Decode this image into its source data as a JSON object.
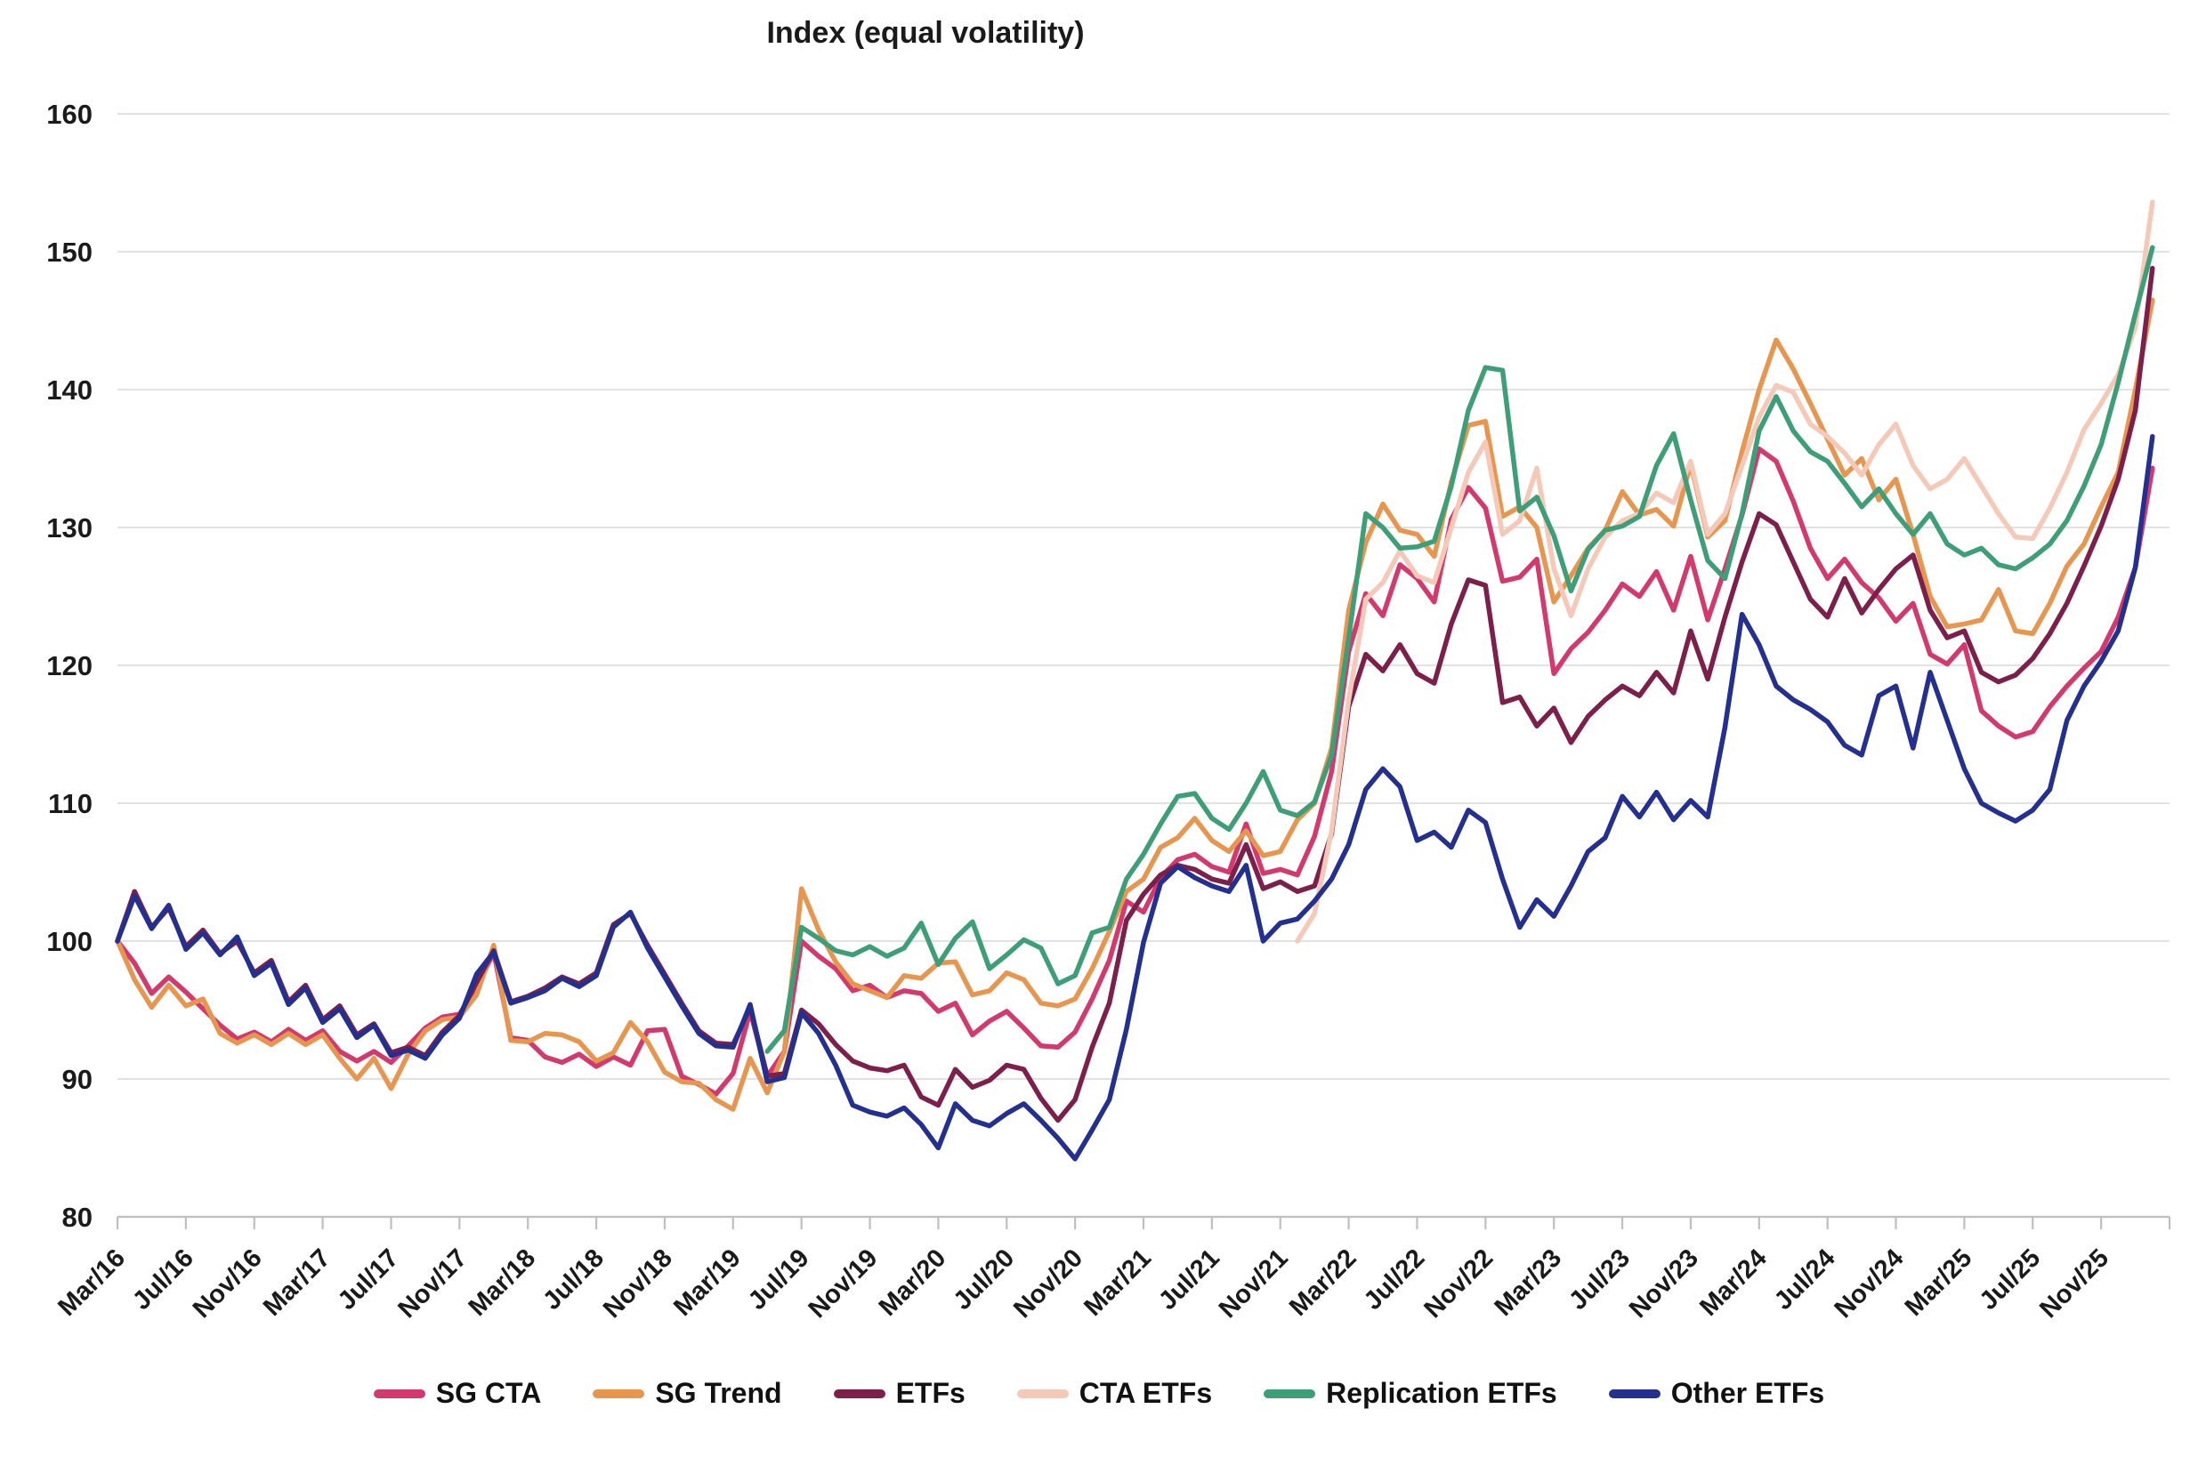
{
  "chart_data": {
    "type": "line",
    "title": "Index (equal volatility)",
    "xlabel": "",
    "ylabel": "",
    "ylim": [
      80,
      160
    ],
    "y_ticks": [
      80,
      90,
      100,
      110,
      120,
      130,
      140,
      150,
      160
    ],
    "grid": true,
    "legend_position": "bottom",
    "background_color": "#ffffff",
    "grid_color": "#d9d9d9",
    "axis_color": "#bfbfbf",
    "text_color": "#1a1a1a",
    "x_tick_every": 4,
    "x_tick_labels": [
      "Mar/16",
      "Jul/16",
      "Nov/16",
      "Mar/17",
      "Jul/17",
      "Nov/17",
      "Mar/18",
      "Jul/18",
      "Nov/18",
      "Mar/19",
      "Jul/19",
      "Nov/19",
      "Mar/20",
      "Jul/20",
      "Nov/20",
      "Mar/21",
      "Jul/21",
      "Nov/21",
      "Mar/22",
      "Jul/22",
      "Nov/22",
      "Mar/23",
      "Jul/23",
      "Nov/23",
      "Mar/24",
      "Jul/24",
      "Nov/24",
      "Mar/25",
      "Jul/25",
      "Nov/25"
    ],
    "x": [
      "Mar/16",
      "Apr/16",
      "May/16",
      "Jun/16",
      "Jul/16",
      "Aug/16",
      "Sep/16",
      "Oct/16",
      "Nov/16",
      "Dec/16",
      "Jan/17",
      "Feb/17",
      "Mar/17",
      "Apr/17",
      "May/17",
      "Jun/17",
      "Jul/17",
      "Aug/17",
      "Sep/17",
      "Oct/17",
      "Nov/17",
      "Dec/17",
      "Jan/18",
      "Feb/18",
      "Mar/18",
      "Apr/18",
      "May/18",
      "Jun/18",
      "Jul/18",
      "Aug/18",
      "Sep/18",
      "Oct/18",
      "Nov/18",
      "Dec/18",
      "Jan/19",
      "Feb/19",
      "Mar/19",
      "Apr/19",
      "May/19",
      "Jun/19",
      "Jul/19",
      "Aug/19",
      "Sep/19",
      "Oct/19",
      "Nov/19",
      "Dec/19",
      "Jan/20",
      "Feb/20",
      "Mar/20",
      "Apr/20",
      "May/20",
      "Jun/20",
      "Jul/20",
      "Aug/20",
      "Sep/20",
      "Oct/20",
      "Nov/20",
      "Dec/20",
      "Jan/21",
      "Feb/21",
      "Mar/21",
      "Apr/21",
      "May/21",
      "Jun/21",
      "Jul/21",
      "Aug/21",
      "Sep/21",
      "Oct/21",
      "Nov/21",
      "Dec/21",
      "Jan/22",
      "Feb/22",
      "Mar/22",
      "Apr/22",
      "May/22",
      "Jun/22",
      "Jul/22",
      "Aug/22",
      "Sep/22",
      "Oct/22",
      "Nov/22",
      "Dec/22",
      "Jan/23",
      "Feb/23",
      "Mar/23",
      "Apr/23",
      "May/23",
      "Jun/23",
      "Jul/23",
      "Aug/23",
      "Sep/23",
      "Oct/23",
      "Nov/23",
      "Dec/23",
      "Jan/24",
      "Feb/24",
      "Mar/24",
      "Apr/24",
      "May/24",
      "Jun/24",
      "Jul/24",
      "Aug/24",
      "Sep/24",
      "Oct/24",
      "Nov/24",
      "Dec/24",
      "Jan/25",
      "Feb/25",
      "Mar/25",
      "Apr/25",
      "May/25",
      "Jun/25",
      "Jul/25",
      "Aug/25",
      "Sep/25",
      "Oct/25",
      "Nov/25",
      "Dec/25",
      "Jan/26",
      "Feb/26"
    ],
    "series": [
      {
        "name": "SG CTA",
        "color": "#d23a6e",
        "values": [
          100,
          98.4,
          96.2,
          97.4,
          96.3,
          95.1,
          93.9,
          92.9,
          93.4,
          92.7,
          93.6,
          92.8,
          93.5,
          92.0,
          91.3,
          92.0,
          91.2,
          92.4,
          93.7,
          94.5,
          94.7,
          96.6,
          99.2,
          93.0,
          92.8,
          91.6,
          91.2,
          91.8,
          90.9,
          91.6,
          91.0,
          93.5,
          93.6,
          90.2,
          89.6,
          88.9,
          90.4,
          94.9,
          90.2,
          92.0,
          100.0,
          98.9,
          98.0,
          96.4,
          96.8,
          95.9,
          96.4,
          96.2,
          94.9,
          95.5,
          93.2,
          94.2,
          94.9,
          93.7,
          92.4,
          92.3,
          93.4,
          95.8,
          98.6,
          102.9,
          102.1,
          104.6,
          105.9,
          106.3,
          105.4,
          105.0,
          108.5,
          104.9,
          105.2,
          104.8,
          107.6,
          112.3,
          121.0,
          125.2,
          123.6,
          127.3,
          126.3,
          124.6,
          130.6,
          132.9,
          131.4,
          126.1,
          126.4,
          127.7,
          119.4,
          121.2,
          122.4,
          124.0,
          125.9,
          125.0,
          126.8,
          124.0,
          127.9,
          123.3,
          127.0,
          130.9,
          135.7,
          134.8,
          131.9,
          128.5,
          126.3,
          127.7,
          126.0,
          124.9,
          123.2,
          124.5,
          120.8,
          120.1,
          121.5,
          116.7,
          115.6,
          114.8,
          115.2,
          117.0,
          118.5,
          119.8,
          121.0,
          123.5,
          127.1,
          134.3
        ]
      },
      {
        "name": "SG Trend",
        "color": "#e6964f",
        "values": [
          100,
          97.2,
          95.2,
          96.8,
          95.3,
          95.8,
          93.3,
          92.6,
          93.2,
          92.5,
          93.3,
          92.5,
          93.2,
          91.5,
          90.0,
          91.5,
          89.3,
          91.8,
          93.5,
          94.3,
          94.5,
          96.1,
          99.7,
          92.8,
          92.7,
          93.3,
          93.2,
          92.7,
          91.3,
          91.9,
          94.1,
          92.7,
          90.5,
          89.8,
          89.7,
          88.5,
          87.8,
          91.5,
          89.0,
          92.0,
          103.8,
          100.8,
          98.5,
          96.9,
          96.4,
          95.9,
          97.5,
          97.3,
          98.4,
          98.5,
          96.1,
          96.4,
          97.7,
          97.2,
          95.5,
          95.3,
          95.8,
          98.0,
          100.7,
          103.6,
          104.5,
          106.8,
          107.5,
          108.9,
          107.3,
          106.5,
          108.0,
          106.2,
          106.5,
          108.8,
          110.0,
          114.0,
          124.0,
          128.9,
          131.7,
          129.8,
          129.5,
          127.9,
          133.3,
          137.4,
          137.7,
          130.8,
          131.5,
          130.0,
          124.6,
          126.5,
          128.5,
          129.8,
          132.6,
          130.9,
          131.3,
          130.1,
          134.6,
          129.3,
          130.5,
          135.5,
          140.0,
          143.6,
          141.5,
          139.0,
          136.4,
          133.8,
          135.0,
          132.0,
          133.5,
          129.5,
          125.0,
          122.8,
          123.0,
          123.3,
          125.5,
          122.5,
          122.3,
          124.5,
          127.2,
          128.8,
          131.5,
          134.0,
          140.0,
          146.5
        ]
      },
      {
        "name": "ETFs",
        "color": "#7c1f4a",
        "values": [
          100,
          103.6,
          101.0,
          102.4,
          99.6,
          100.8,
          99.1,
          100.0,
          97.7,
          98.6,
          95.6,
          96.8,
          94.3,
          95.3,
          93.2,
          94.0,
          91.9,
          92.3,
          91.7,
          93.4,
          94.6,
          97.0,
          99.3,
          95.6,
          96.0,
          96.6,
          97.4,
          96.9,
          97.7,
          101.2,
          102.0,
          99.7,
          97.6,
          95.5,
          93.5,
          92.6,
          92.5,
          95.2,
          90.2,
          90.4,
          95.0,
          94.0,
          92.5,
          91.3,
          90.8,
          90.6,
          91.0,
          88.7,
          88.1,
          90.7,
          89.4,
          89.9,
          91.0,
          90.7,
          88.6,
          87.0,
          88.5,
          92.3,
          95.5,
          101.5,
          103.4,
          104.8,
          105.5,
          105.2,
          104.5,
          104.2,
          107.0,
          103.8,
          104.3,
          103.6,
          104.0,
          107.8,
          117.0,
          120.8,
          119.6,
          121.5,
          119.4,
          118.7,
          123.0,
          126.2,
          125.8,
          117.3,
          117.7,
          115.6,
          116.9,
          114.4,
          116.3,
          117.5,
          118.5,
          117.8,
          119.5,
          118.0,
          122.5,
          119.0,
          123.5,
          127.5,
          131.0,
          130.2,
          127.5,
          124.8,
          123.5,
          126.3,
          123.8,
          125.5,
          127.0,
          128.0,
          124.0,
          122.0,
          122.5,
          119.5,
          118.8,
          119.3,
          120.5,
          122.3,
          124.5,
          127.2,
          130.1,
          133.5,
          138.5,
          148.8
        ]
      },
      {
        "name": "CTA ETFs",
        "color": "#f4c9b8",
        "values": [
          null,
          null,
          null,
          null,
          null,
          null,
          null,
          null,
          null,
          null,
          null,
          null,
          null,
          null,
          null,
          null,
          null,
          null,
          null,
          null,
          null,
          null,
          null,
          null,
          null,
          null,
          null,
          null,
          null,
          null,
          null,
          null,
          null,
          null,
          null,
          null,
          null,
          null,
          null,
          null,
          null,
          null,
          null,
          null,
          null,
          null,
          null,
          null,
          null,
          null,
          null,
          null,
          null,
          null,
          null,
          null,
          null,
          null,
          null,
          null,
          null,
          null,
          null,
          null,
          null,
          null,
          null,
          null,
          null,
          100.0,
          102.0,
          108.0,
          117.5,
          124.8,
          126.0,
          128.3,
          126.5,
          126.0,
          130.0,
          134.0,
          136.2,
          129.5,
          130.5,
          134.3,
          127.0,
          123.6,
          127.0,
          129.3,
          130.5,
          131.0,
          132.5,
          131.8,
          134.8,
          129.5,
          131.0,
          134.5,
          138.0,
          140.3,
          139.8,
          137.5,
          136.6,
          135.4,
          133.8,
          136.0,
          137.5,
          134.5,
          132.8,
          133.5,
          135.0,
          133.0,
          131.0,
          129.3,
          129.2,
          131.4,
          134.0,
          137.1,
          139.0,
          141.1,
          144.5,
          153.6
        ]
      },
      {
        "name": "Replication ETFs",
        "color": "#3d9e78",
        "values": [
          null,
          null,
          null,
          null,
          null,
          null,
          null,
          null,
          null,
          null,
          null,
          null,
          null,
          null,
          null,
          null,
          null,
          null,
          null,
          null,
          null,
          null,
          null,
          null,
          null,
          null,
          null,
          null,
          null,
          null,
          null,
          null,
          null,
          null,
          null,
          null,
          null,
          null,
          92.0,
          93.5,
          101.0,
          100.2,
          99.3,
          99.0,
          99.6,
          98.9,
          99.5,
          101.3,
          98.3,
          100.2,
          101.4,
          98.0,
          99.0,
          100.1,
          99.5,
          96.9,
          97.5,
          100.6,
          101.0,
          104.5,
          106.3,
          108.5,
          110.5,
          110.7,
          108.9,
          108.1,
          110.0,
          112.3,
          109.5,
          109.1,
          110.1,
          113.5,
          122.0,
          131.0,
          130.0,
          128.5,
          128.6,
          129.0,
          133.0,
          138.5,
          141.6,
          141.4,
          131.2,
          132.2,
          129.4,
          125.4,
          128.4,
          129.8,
          130.1,
          130.8,
          134.5,
          136.8,
          132.0,
          127.6,
          126.3,
          131.0,
          137.0,
          139.5,
          137.0,
          135.5,
          134.8,
          133.2,
          131.5,
          132.8,
          131.0,
          129.5,
          131.0,
          128.8,
          128.0,
          128.5,
          127.3,
          127.0,
          127.8,
          128.8,
          130.5,
          133.0,
          136.0,
          140.5,
          145.5,
          150.3
        ]
      },
      {
        "name": "Other ETFs",
        "color": "#24308f",
        "values": [
          100,
          103.3,
          100.9,
          102.6,
          99.4,
          100.6,
          99.0,
          100.3,
          97.5,
          98.4,
          95.4,
          96.6,
          94.1,
          95.1,
          93.0,
          93.9,
          91.7,
          92.1,
          91.5,
          93.2,
          94.4,
          97.6,
          99.2,
          95.5,
          95.9,
          96.4,
          97.3,
          96.7,
          97.5,
          101.0,
          102.1,
          99.5,
          97.4,
          95.3,
          93.3,
          92.4,
          92.3,
          95.4,
          89.8,
          90.1,
          94.8,
          93.3,
          91.0,
          88.1,
          87.6,
          87.3,
          87.9,
          86.7,
          85.0,
          88.2,
          87.0,
          86.6,
          87.5,
          88.2,
          87.0,
          85.7,
          84.2,
          86.3,
          88.5,
          93.6,
          99.9,
          104.2,
          105.4,
          104.6,
          104.0,
          103.6,
          105.5,
          100.0,
          101.3,
          101.6,
          102.9,
          104.5,
          107.0,
          111.0,
          112.5,
          111.2,
          107.3,
          107.9,
          106.8,
          109.5,
          108.6,
          104.5,
          101.0,
          103.0,
          101.8,
          104.0,
          106.5,
          107.5,
          110.5,
          109.0,
          110.8,
          108.8,
          110.2,
          109.0,
          115.5,
          123.7,
          121.5,
          118.5,
          117.5,
          116.8,
          115.9,
          114.2,
          113.5,
          117.8,
          118.5,
          114.0,
          119.5,
          116.0,
          112.5,
          110.0,
          109.3,
          108.7,
          109.5,
          111.0,
          116.0,
          118.5,
          120.3,
          122.5,
          127.1,
          136.6
        ]
      }
    ]
  }
}
